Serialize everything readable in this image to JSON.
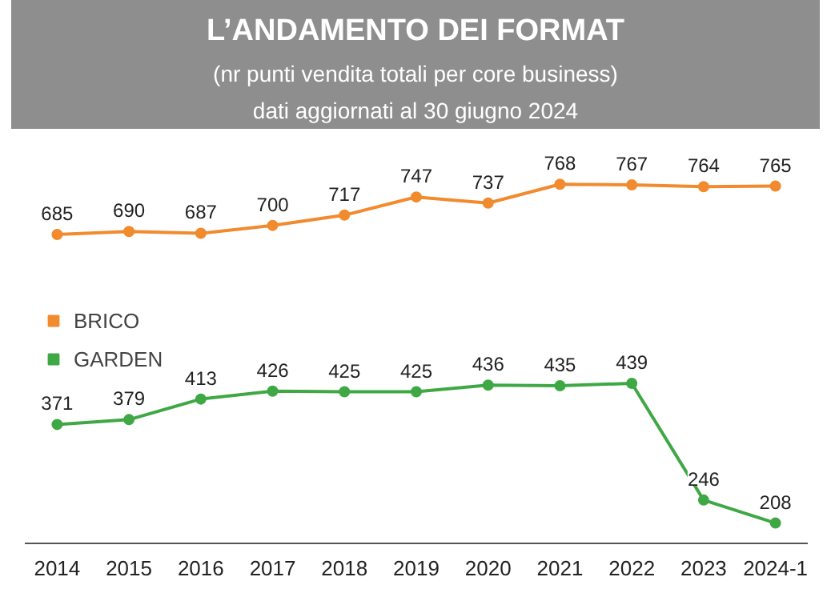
{
  "chart_data": {
    "type": "line",
    "title": "L’ANDAMENTO DEI FORMAT",
    "subtitle": "(nr punti vendita totali per core business)\ndati aggiornati al 30 giugno 2024",
    "categories": [
      "2014",
      "2015",
      "2016",
      "2017",
      "2018",
      "2019",
      "2020",
      "2021",
      "2022",
      "2023",
      "2024-1"
    ],
    "series": [
      {
        "name": "BRICO",
        "color": "#f28a2e",
        "values": [
          685,
          690,
          687,
          700,
          717,
          747,
          737,
          768,
          767,
          764,
          765
        ]
      },
      {
        "name": "GARDEN",
        "color": "#3fa845",
        "values": [
          371,
          379,
          413,
          426,
          425,
          425,
          436,
          435,
          439,
          246,
          208
        ]
      }
    ],
    "data_labels": true,
    "marker": "circle",
    "legend": "left",
    "grid": false
  }
}
